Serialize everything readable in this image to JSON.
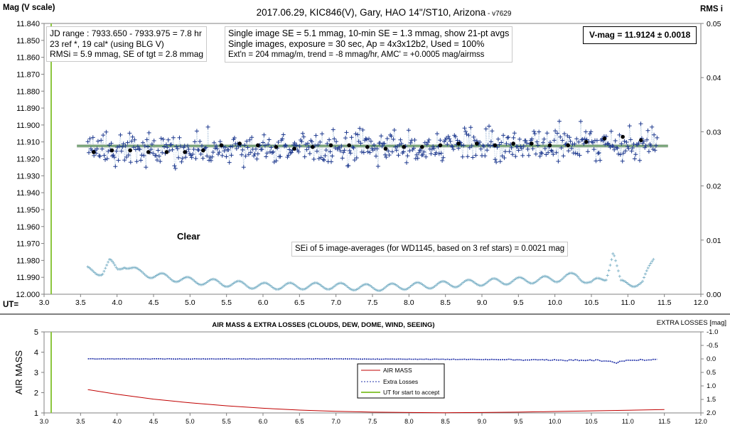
{
  "top_chart": {
    "title": "2017.06.29,  KIC846(V),  Gary,  HAO  14\"/ST10,  Arizona",
    "version": " - v7629",
    "y_left_label": "Mag (V scale)",
    "y_right_label": "RMS i",
    "x_label": "UT=",
    "y_ticks": [
      "11.840",
      "11.850",
      "11.860",
      "11.870",
      "11.880",
      "11.890",
      "11.900",
      "11.910",
      "11.920",
      "11.930",
      "11.940",
      "11.950",
      "11.960",
      "11.970",
      "11.980",
      "11.990",
      "12.000"
    ],
    "x_ticks": [
      "3.0",
      "3.5",
      "4.0",
      "4.5",
      "5.0",
      "5.5",
      "6.0",
      "6.5",
      "7.0",
      "7.5",
      "8.0",
      "8.5",
      "9.0",
      "9.5",
      "10.0",
      "10.5",
      "11.0",
      "11.5",
      "12.0"
    ],
    "y2_ticks": [
      "0.05",
      "0.04",
      "0.03",
      "0.02",
      "0.01",
      "0.00"
    ],
    "info_left": [
      "JD range : 7933.650 - 7933.975 = 7.8 hr",
      "23 ref *, 19 cal* (using BLG V)",
      "RMSi = 5.9 mmag, SE of tgt = 2.8 mmag"
    ],
    "info_center": [
      "Single image SE = 5.1 mmag, 10-min SE = 1.3 mmag, show 21-pt avgs",
      "Single images, exposure = 30 sec, Ap = 4x3x12b2, Used = 100%",
      "Ext'n = 204 mmag/m, trend = -8 mmag/hr, AMC' = +0.0005 mag/airmss"
    ],
    "vmag": "V-mag = 11.9124 ± 0.0018",
    "clear_label": "Clear",
    "sei_note": "SEi of 5 image-averages (for WD1145, based on 3 ref stars) = 0.0021 mag"
  },
  "bottom_chart": {
    "title": "AIR MASS & EXTRA LOSSES (CLOUDS, DEW, DOME, WIND, SEEING)",
    "right_title": "EXTRA LOSSES [mag]",
    "y_left_label": "AIR MASS",
    "y_ticks": [
      "5",
      "4",
      "3",
      "2",
      "1"
    ],
    "y2_ticks": [
      "-1.0",
      "-0.5",
      "0.0",
      "0.5",
      "1.0",
      "1.5",
      "2.0"
    ],
    "x_ticks": [
      "3.0",
      "3.5",
      "4.0",
      "4.5",
      "5.0",
      "5.5",
      "6.0",
      "6.5",
      "7.0",
      "7.5",
      "8.0",
      "8.5",
      "9.0",
      "9.5",
      "10.0",
      "10.5",
      "11.0",
      "11.5",
      "12.0"
    ],
    "legend": [
      "AIR MASS",
      "Extra Losses",
      "UT for start to accept"
    ]
  },
  "colors": {
    "data": "#1f3a8f",
    "avg": "#000000",
    "fit": "#8fb88f",
    "rms": "#7fb3c8",
    "airmass": "#c00000",
    "extra": "#1f2fa8",
    "ut_line": "#8cc63f"
  },
  "chart_data": [
    {
      "type": "scatter",
      "title": "2017.06.29,  KIC846(V),  Gary,  HAO  14\"/ST10,  Arizona",
      "xlabel": "UT=",
      "ylabel": "Mag (V scale)",
      "xlim": [
        3.0,
        12.0
      ],
      "ylim": [
        12.0,
        11.84
      ],
      "y2label": "RMS i",
      "y2lim": [
        0,
        0.05
      ],
      "ut_start_accept": 3.1,
      "fit_level": 11.9124,
      "single_images": {
        "x_range": [
          3.6,
          11.4
        ],
        "center": 11.913,
        "spread": 0.008
      },
      "series": [
        {
          "name": "21-pt avgs",
          "x": [
            3.68,
            3.93,
            4.18,
            4.43,
            4.68,
            4.93,
            5.18,
            5.43,
            5.68,
            5.93,
            6.18,
            6.43,
            6.68,
            6.93,
            7.18,
            7.43,
            7.68,
            7.93,
            8.18,
            8.43,
            8.68,
            8.93,
            9.18,
            9.43,
            9.68,
            9.93,
            10.18,
            10.43,
            10.68,
            10.93,
            11.18
          ],
          "y": [
            11.916,
            11.915,
            11.915,
            11.916,
            11.916,
            11.916,
            11.915,
            11.912,
            11.911,
            11.912,
            11.913,
            11.914,
            11.913,
            11.912,
            11.912,
            11.913,
            11.914,
            11.913,
            11.913,
            11.912,
            11.911,
            11.911,
            11.912,
            11.911,
            11.911,
            11.912,
            11.912,
            11.91,
            11.908,
            11.907,
            11.909
          ]
        },
        {
          "name": "RMS i",
          "x": [
            3.6,
            3.8,
            3.9,
            4.0,
            4.1,
            4.3,
            4.5,
            5.0,
            5.5,
            6.0,
            6.5,
            7.0,
            7.5,
            8.0,
            8.5,
            9.0,
            9.5,
            10.0,
            10.3,
            10.5,
            10.7,
            10.8,
            10.9,
            11.0,
            11.2,
            11.35
          ],
          "y": [
            0.0045,
            0.004,
            0.006,
            0.0045,
            0.0055,
            0.004,
            0.0035,
            0.0025,
            0.002,
            0.0015,
            0.0015,
            0.0015,
            0.0012,
            0.0015,
            0.0018,
            0.0022,
            0.0025,
            0.0028,
            0.0035,
            0.002,
            0.003,
            0.008,
            0.002,
            0.002,
            0.002,
            0.0065
          ]
        }
      ]
    },
    {
      "type": "line",
      "title": "AIR MASS & EXTRA LOSSES (CLOUDS, DEW, DOME, WIND, SEEING)",
      "ylabel": "AIR MASS",
      "y2label": "EXTRA LOSSES [mag]",
      "xlim": [
        3.0,
        12.0
      ],
      "ylim": [
        1,
        5
      ],
      "y2lim": [
        -1.0,
        2.0
      ],
      "series": [
        {
          "name": "AIR MASS",
          "x": [
            3.6,
            4.0,
            4.5,
            5.0,
            5.5,
            6.0,
            6.5,
            7.0,
            7.5,
            8.0,
            8.5,
            9.0,
            9.5,
            10.0,
            10.5,
            11.0,
            11.5
          ],
          "y": [
            2.15,
            1.92,
            1.68,
            1.5,
            1.35,
            1.23,
            1.14,
            1.08,
            1.04,
            1.02,
            1.01,
            1.02,
            1.04,
            1.07,
            1.1,
            1.13,
            1.17
          ]
        },
        {
          "name": "Extra Losses",
          "x": [
            3.6,
            5.0,
            7.0,
            9.0,
            10.0,
            10.5,
            10.8,
            10.85,
            10.9,
            11.0,
            11.2,
            11.4
          ],
          "y": [
            0.0,
            0.0,
            0.0,
            0.02,
            0.05,
            0.04,
            0.1,
            0.15,
            0.08,
            0.05,
            0.04,
            0.03
          ]
        }
      ]
    }
  ]
}
